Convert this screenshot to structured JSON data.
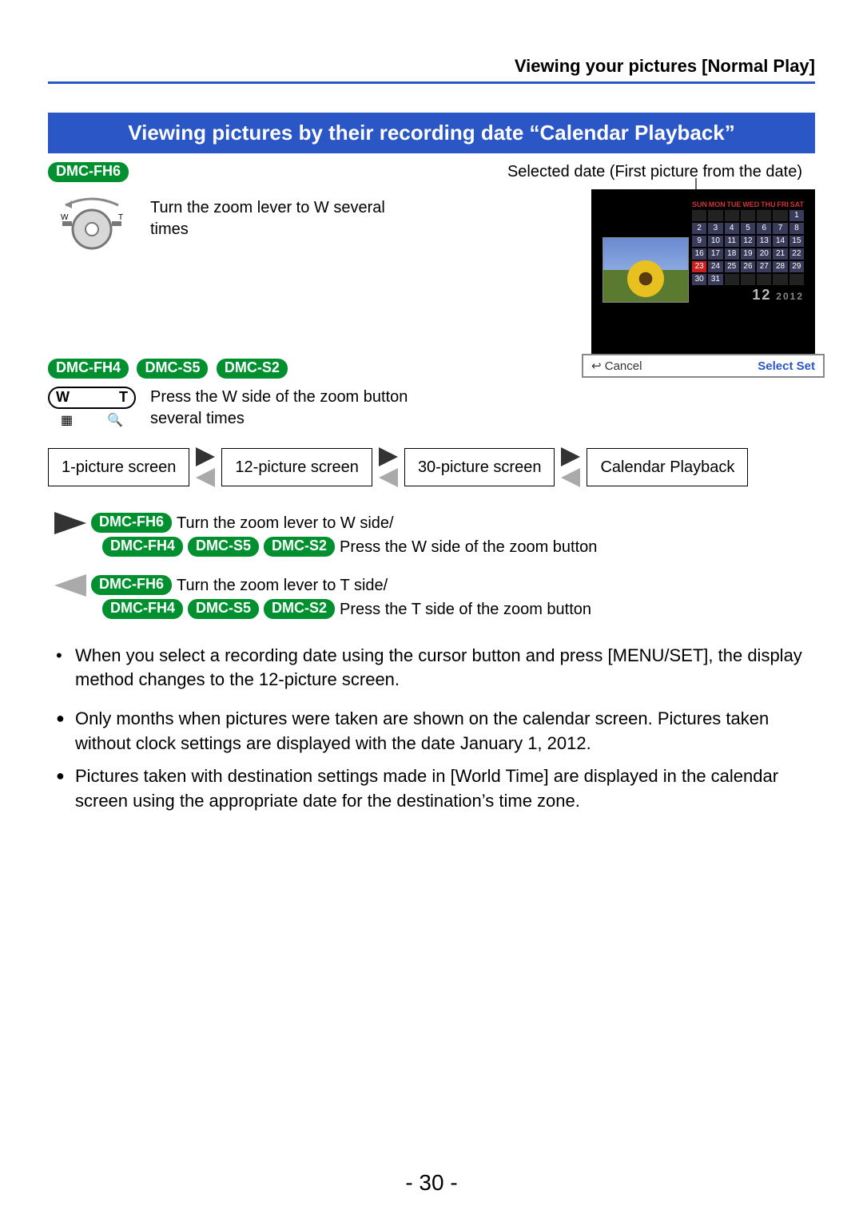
{
  "header": {
    "breadcrumb": "Viewing your pictures  [Normal Play]"
  },
  "section": {
    "title": "Viewing pictures by their recording date “Calendar Playback”"
  },
  "badges": {
    "fh6": "DMC-FH6",
    "fh4": "DMC-FH4",
    "s5": "DMC-S5",
    "s2": "DMC-S2"
  },
  "controls": {
    "fh6_text": "Turn the zoom lever to W several times",
    "others_text": "Press the W side of the zoom button several times",
    "wt_w": "W",
    "wt_t": "T"
  },
  "camera": {
    "selected_date_label": "Selected date (First picture from the date)",
    "cancel": "Cancel",
    "select_set": "Select      Set",
    "year_label": "2012",
    "month_big": "12",
    "days_header": [
      "SUN",
      "MON",
      "TUE",
      "WED",
      "THU",
      "FRI",
      "SAT"
    ],
    "weeks": [
      [
        "",
        "",
        "",
        "",
        "",
        "",
        "1"
      ],
      [
        "2",
        "3",
        "4",
        "5",
        "6",
        "7",
        "8"
      ],
      [
        "9",
        "10",
        "11",
        "12",
        "13",
        "14",
        "15"
      ],
      [
        "16",
        "17",
        "18",
        "19",
        "20",
        "21",
        "22"
      ],
      [
        "23",
        "24",
        "25",
        "26",
        "27",
        "28",
        "29"
      ],
      [
        "30",
        "31",
        "",
        "",
        "",
        "",
        ""
      ]
    ],
    "selected_cell": "23"
  },
  "flow": {
    "box1": "1-picture screen",
    "box2": "12-picture screen",
    "box3": "30-picture screen",
    "box4": "Calendar Playback"
  },
  "instructions": {
    "line1_a": "Turn the zoom lever to W side/",
    "line1_b": "Press the W side of the zoom button",
    "line2_a": "Turn the zoom lever to T side/",
    "line2_b": "Press the T side of the zoom button"
  },
  "notes": {
    "n1": "When you select a recording date using the cursor button and press [MENU/SET], the display method changes to the 12-picture screen.",
    "n2": "Only months when pictures were taken are shown on the calendar screen. Pictures taken without clock settings are displayed with the date January 1, 2012.",
    "n3": "Pictures taken with destination settings made in [World Time] are displayed in the calendar screen using the appropriate date for the destination’s time zone."
  },
  "page_number": "- 30 -"
}
